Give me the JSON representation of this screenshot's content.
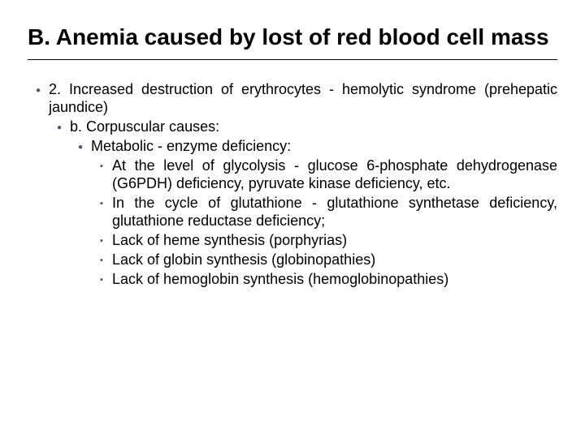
{
  "title": "B. Anemia caused by lost of red blood cell mass",
  "p1": "2. Increased destruction of erythrocytes - hemolytic syndrome (prehepatic jaundice)",
  "p1a": "b. Corpuscular causes:",
  "p1a1": "Metabolic - enzyme deficiency:",
  "p1a1_i": "At the level of glycolysis - glucose 6-phosphate dehydrogenase (G6PDH) deficiency, pyruvate kinase deficiency, etc.",
  "p1a1_ii": "In the cycle of glutathione - glutathione synthetase deficiency, glutathione reductase deficiency;",
  "p1a1_iii": "Lack of heme synthesis (porphyrias)",
  "p1a1_iv": "Lack of globin synthesis (globinopathies)",
  "p1a1_v": "Lack of hemoglobin synthesis (hemoglobinopathies)",
  "colors": {
    "text": "#000000",
    "bullet": "#5a4a7c",
    "background": "#ffffff",
    "rule": "#000000"
  },
  "font": {
    "title_size_pt": 21,
    "body_size_pt": 13.5,
    "family": "Arial"
  }
}
